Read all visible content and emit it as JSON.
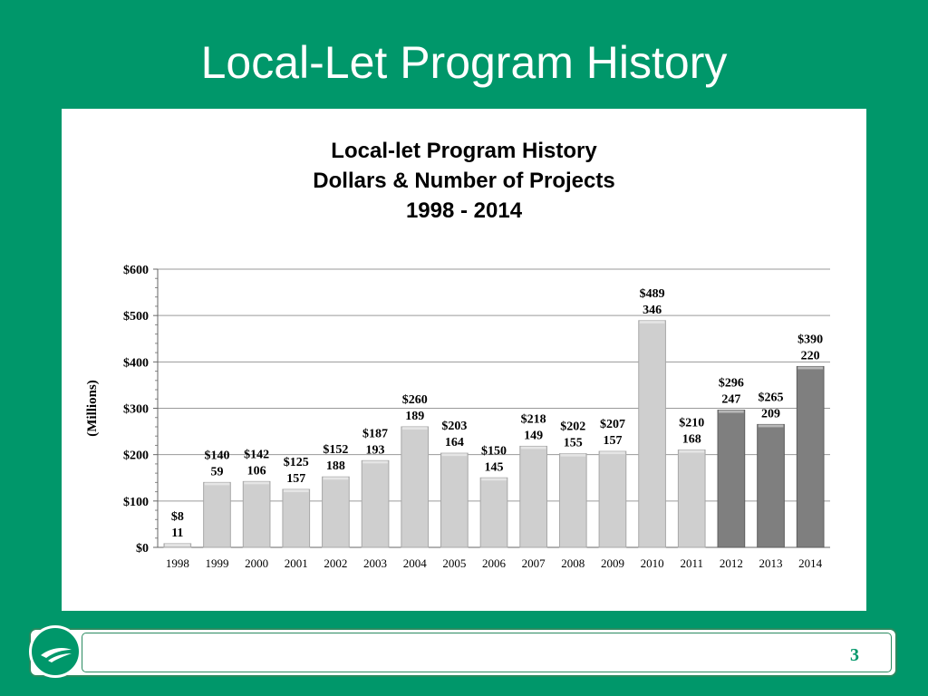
{
  "slide": {
    "title": "Local-Let Program History",
    "page_number": "3"
  },
  "colors": {
    "background": "#00976a",
    "bar_light": "#cfcfcf",
    "bar_dark": "#7f7f7f",
    "gridline": "#9a9a9a"
  },
  "chart_data": {
    "type": "bar",
    "title_lines": [
      "Local-let Program History",
      "Dollars & Number of Projects",
      "1998 - 2014"
    ],
    "ylabel": "(Millions)",
    "xlabel": "",
    "ylim": [
      0,
      600
    ],
    "yticks": [
      0,
      100,
      200,
      300,
      400,
      500,
      600
    ],
    "ytick_labels": [
      "$0",
      "$100",
      "$200",
      "$300",
      "$400",
      "$500",
      "$600"
    ],
    "grid": true,
    "categories": [
      "1998",
      "1999",
      "2000",
      "2001",
      "2002",
      "2003",
      "2004",
      "2005",
      "2006",
      "2007",
      "2008",
      "2009",
      "2010",
      "2011",
      "2012",
      "2013",
      "2014"
    ],
    "values": [
      8,
      140,
      142,
      125,
      152,
      187,
      260,
      203,
      150,
      218,
      202,
      207,
      489,
      210,
      296,
      265,
      390
    ],
    "projects": [
      11,
      59,
      106,
      157,
      188,
      193,
      189,
      164,
      145,
      149,
      155,
      157,
      346,
      168,
      247,
      209,
      220
    ],
    "dollar_labels": [
      "$8",
      "$140",
      "$142",
      "$125",
      "$152",
      "$187",
      "$260",
      "$203",
      "$150",
      "$218",
      "$202",
      "$207",
      "$489",
      "$210",
      "$296",
      "$265",
      "$390"
    ],
    "shade": [
      "light",
      "light",
      "light",
      "light",
      "light",
      "light",
      "light",
      "light",
      "light",
      "light",
      "light",
      "light",
      "light",
      "light",
      "dark",
      "dark",
      "dark"
    ]
  }
}
